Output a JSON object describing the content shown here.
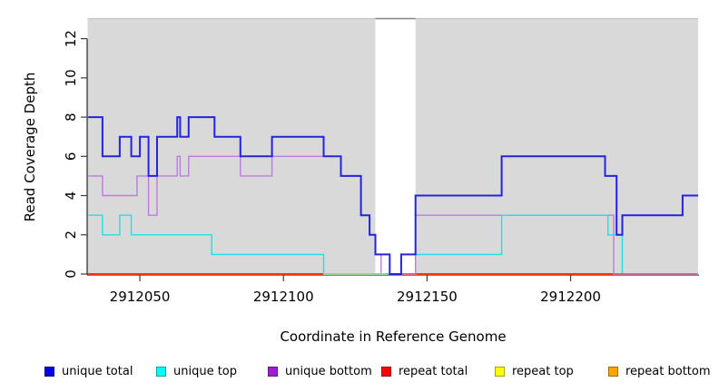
{
  "figure": {
    "xlabel": "Coordinate in Reference Genome",
    "ylabel": "Read Coverage Depth"
  },
  "legend": {
    "items": [
      {
        "label": "unique total",
        "color": "#0000e6"
      },
      {
        "label": "unique top",
        "color": "#00ffff"
      },
      {
        "label": "unique bottom",
        "color": "#9d1fd1"
      },
      {
        "label": "repeat total",
        "color": "#ff0000"
      },
      {
        "label": "repeat top",
        "color": "#ffff00"
      },
      {
        "label": "repeat bottom",
        "color": "#ffa500"
      }
    ]
  },
  "chart_data": {
    "type": "line",
    "subtype": "step-after",
    "title": "",
    "xlabel": "Coordinate in Reference Genome",
    "ylabel": "Read Coverage Depth",
    "xlim": [
      2912031.8,
      2912244.4
    ],
    "ylim": [
      0,
      13
    ],
    "grid": false,
    "legend_position": "bottom",
    "panel_color": "#d9d9d9",
    "panel_gap_x": [
      2912132,
      2912146
    ],
    "x_tick_values": [
      2912050,
      2912100,
      2912150,
      2912200
    ],
    "x_tick_labels": [
      "2912050",
      "2912100",
      "2912150",
      "2912200"
    ],
    "y_tick_values": [
      0,
      2,
      4,
      6,
      8,
      10,
      12
    ],
    "y_tick_labels": [
      "0",
      "2",
      "4",
      "6",
      "8",
      "10",
      "12"
    ],
    "series": [
      {
        "name": "unique total",
        "color": "#2424dd",
        "width": 2,
        "points": [
          [
            2912032,
            8
          ],
          [
            2912037,
            6
          ],
          [
            2912043,
            7
          ],
          [
            2912047,
            6
          ],
          [
            2912050,
            7
          ],
          [
            2912053,
            5
          ],
          [
            2912056,
            7
          ],
          [
            2912063,
            8
          ],
          [
            2912064,
            7
          ],
          [
            2912067,
            8
          ],
          [
            2912076,
            7
          ],
          [
            2912085,
            6
          ],
          [
            2912096,
            7
          ],
          [
            2912114,
            6
          ],
          [
            2912120,
            5
          ],
          [
            2912127,
            3
          ],
          [
            2912130,
            2
          ],
          [
            2912132,
            1
          ],
          [
            2912137,
            0
          ],
          [
            2912141,
            1
          ],
          [
            2912146,
            4
          ],
          [
            2912176,
            6
          ],
          [
            2912212,
            5
          ],
          [
            2912216,
            2
          ],
          [
            2912218,
            3
          ],
          [
            2912239,
            4
          ],
          [
            2912244,
            4
          ]
        ]
      },
      {
        "name": "unique top",
        "color": "#1ce2e6",
        "width": 1.4,
        "points": [
          [
            2912032,
            3
          ],
          [
            2912037,
            2
          ],
          [
            2912043,
            3
          ],
          [
            2912047,
            2
          ],
          [
            2912075,
            1
          ],
          [
            2912114,
            0
          ],
          [
            2912141,
            1
          ],
          [
            2912176,
            3
          ],
          [
            2912213,
            2
          ],
          [
            2912218,
            0
          ],
          [
            2912244,
            0
          ]
        ]
      },
      {
        "name": "unique bottom",
        "color": "#bd7ae3",
        "width": 1.4,
        "points": [
          [
            2912032,
            5
          ],
          [
            2912037,
            4
          ],
          [
            2912049,
            5
          ],
          [
            2912053,
            3
          ],
          [
            2912056,
            5
          ],
          [
            2912063,
            6
          ],
          [
            2912064,
            5
          ],
          [
            2912067,
            6
          ],
          [
            2912085,
            5
          ],
          [
            2912096,
            6
          ],
          [
            2912120,
            5
          ],
          [
            2912127,
            3
          ],
          [
            2912130,
            2
          ],
          [
            2912132,
            1
          ],
          [
            2912134,
            0
          ],
          [
            2912146,
            3
          ],
          [
            2912215,
            0
          ],
          [
            2912244,
            0
          ]
        ]
      },
      {
        "name": "repeat total",
        "color": "#ff0000",
        "width": 1.4,
        "points": [
          [
            2912032,
            0
          ],
          [
            2912244,
            0
          ]
        ]
      },
      {
        "name": "repeat top",
        "color": "#ffff00",
        "width": 1.4,
        "points": [
          [
            2912032,
            0
          ],
          [
            2912244,
            0
          ]
        ]
      },
      {
        "name": "repeat bottom",
        "color": "#ff9e00",
        "width": 2,
        "points": [
          [
            2912032,
            0
          ],
          [
            2912244,
            0
          ]
        ]
      }
    ],
    "baseline_overlap_segments": [
      {
        "y": 0,
        "from": 2912114,
        "to": 2912136,
        "color": "#9cd89c"
      },
      {
        "y": 0,
        "from": 2912141,
        "to": 2912146,
        "color": "#e0608a"
      },
      {
        "y": 0,
        "from": 2912215,
        "to": 2912244,
        "color": "#d4608c"
      }
    ]
  }
}
